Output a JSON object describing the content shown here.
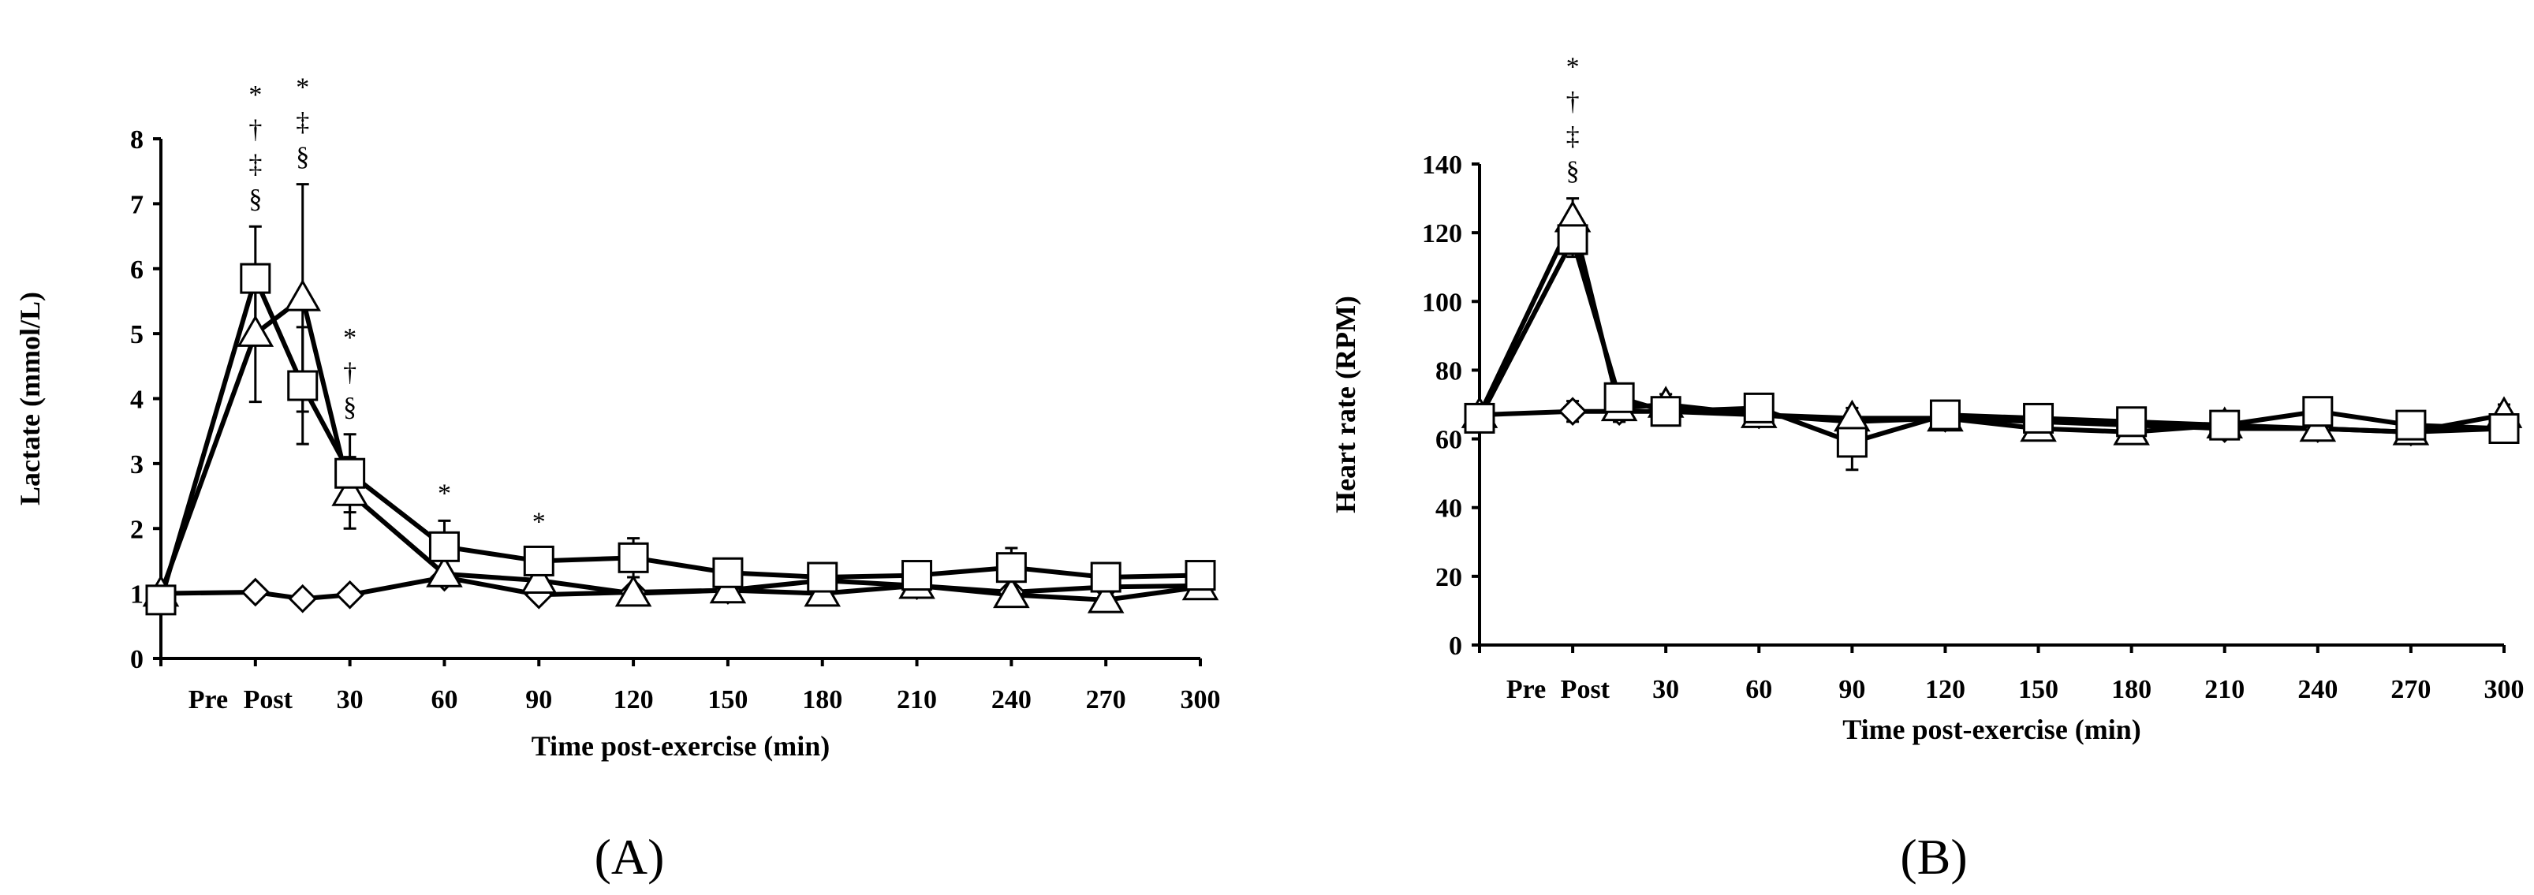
{
  "chart_data": [
    {
      "type": "line",
      "panel_label": "(A)",
      "panel_letter": "A",
      "xlabel": "Time post-exercise (min)",
      "ylabel": "Lactate (mmol/L)",
      "ylim": [
        0,
        8
      ],
      "yticks": [
        "0",
        "1",
        "2",
        "3",
        "4",
        "5",
        "6",
        "7",
        "8"
      ],
      "x_positions": [
        -30,
        0,
        15,
        30,
        60,
        90,
        120,
        150,
        180,
        210,
        240,
        270,
        300
      ],
      "xticks": [
        {
          "x": -15,
          "label": "Pre"
        },
        {
          "x": 4,
          "label": "Post"
        },
        {
          "x": 30,
          "label": "30"
        },
        {
          "x": 60,
          "label": "60"
        },
        {
          "x": 90,
          "label": "90"
        },
        {
          "x": 120,
          "label": "120"
        },
        {
          "x": 150,
          "label": "150"
        },
        {
          "x": 180,
          "label": "180"
        },
        {
          "x": 210,
          "label": "210"
        },
        {
          "x": 240,
          "label": "240"
        },
        {
          "x": 270,
          "label": "270"
        },
        {
          "x": 300,
          "label": "300"
        }
      ],
      "series": [
        {
          "name": "diamond",
          "marker": "diamond",
          "values": [
            1.0,
            1.02,
            0.92,
            0.98,
            1.25,
            0.98,
            1.02,
            1.05,
            1.2,
            1.12,
            1.02,
            1.1,
            1.12
          ],
          "err": [
            0.05,
            0.06,
            0.05,
            0.05,
            0.12,
            0.08,
            0.05,
            0.05,
            0.06,
            0.06,
            0.06,
            0.06,
            0.06
          ]
        },
        {
          "name": "triangle",
          "marker": "triangle",
          "values": [
            1.0,
            5.0,
            5.55,
            2.55,
            1.3,
            1.2,
            1.0,
            1.05,
            1.0,
            1.12,
            0.98,
            0.9,
            1.1
          ],
          "err": [
            0.05,
            1.05,
            1.75,
            0.55,
            0.1,
            0.1,
            0.06,
            0.06,
            0.06,
            0.06,
            0.06,
            0.06,
            0.06
          ]
        },
        {
          "name": "square",
          "marker": "square",
          "values": [
            0.9,
            5.85,
            4.2,
            2.85,
            1.72,
            1.5,
            1.55,
            1.32,
            1.25,
            1.28,
            1.4,
            1.25,
            1.28
          ],
          "err": [
            0.05,
            0.8,
            0.9,
            0.6,
            0.4,
            0.18,
            0.3,
            0.1,
            0.15,
            0.1,
            0.3,
            0.1,
            0.1
          ]
        }
      ],
      "annotations": [
        {
          "x": 0,
          "symbols": [
            "*",
            "†",
            "‡",
            "§"
          ]
        },
        {
          "x": 15,
          "symbols": [
            "*",
            "‡",
            "§"
          ]
        },
        {
          "x": 30,
          "symbols": [
            "*",
            "†",
            "§"
          ]
        },
        {
          "x": 60,
          "symbols": [
            "*"
          ]
        },
        {
          "x": 90,
          "symbols": [
            "*"
          ]
        }
      ]
    },
    {
      "type": "line",
      "panel_label": "(B)",
      "panel_letter": "B",
      "xlabel": "Time post-exercise (min)",
      "ylabel": "Heart rate (RPM)",
      "ylim": [
        0,
        140
      ],
      "yticks": [
        "0",
        "20",
        "40",
        "60",
        "80",
        "100",
        "120",
        "140"
      ],
      "x_positions": [
        -30,
        0,
        15,
        30,
        60,
        90,
        120,
        150,
        180,
        210,
        240,
        270,
        300
      ],
      "xticks": [
        {
          "x": -15,
          "label": "Pre"
        },
        {
          "x": 4,
          "label": "Post"
        },
        {
          "x": 30,
          "label": "30"
        },
        {
          "x": 60,
          "label": "60"
        },
        {
          "x": 90,
          "label": "90"
        },
        {
          "x": 120,
          "label": "120"
        },
        {
          "x": 150,
          "label": "150"
        },
        {
          "x": 180,
          "label": "180"
        },
        {
          "x": 210,
          "label": "210"
        },
        {
          "x": 240,
          "label": "240"
        },
        {
          "x": 270,
          "label": "270"
        },
        {
          "x": 300,
          "label": "300"
        }
      ],
      "series": [
        {
          "name": "diamond",
          "marker": "diamond",
          "values": [
            67,
            68,
            68,
            68,
            67,
            65,
            66,
            65,
            64,
            63,
            63,
            62,
            63
          ],
          "err": [
            3,
            3,
            3,
            3,
            3,
            3,
            3,
            3,
            3,
            3,
            3,
            3,
            3
          ]
        },
        {
          "name": "triangle",
          "marker": "triangle",
          "values": [
            67,
            124,
            69,
            70,
            67,
            66,
            66,
            63,
            62,
            64,
            63,
            62,
            67
          ],
          "err": [
            3,
            6,
            4,
            3,
            3,
            3,
            3,
            3,
            3,
            3,
            3,
            3,
            3
          ]
        },
        {
          "name": "square",
          "marker": "square",
          "values": [
            66,
            118,
            72,
            68,
            69,
            59,
            67,
            66,
            65,
            64,
            68,
            64,
            63
          ],
          "err": [
            3,
            5,
            4,
            3,
            3,
            8,
            3,
            3,
            3,
            3,
            3,
            3,
            3
          ]
        }
      ],
      "annotations": [
        {
          "x": 0,
          "symbols": [
            "*",
            "†",
            "‡",
            "§"
          ]
        }
      ]
    }
  ]
}
